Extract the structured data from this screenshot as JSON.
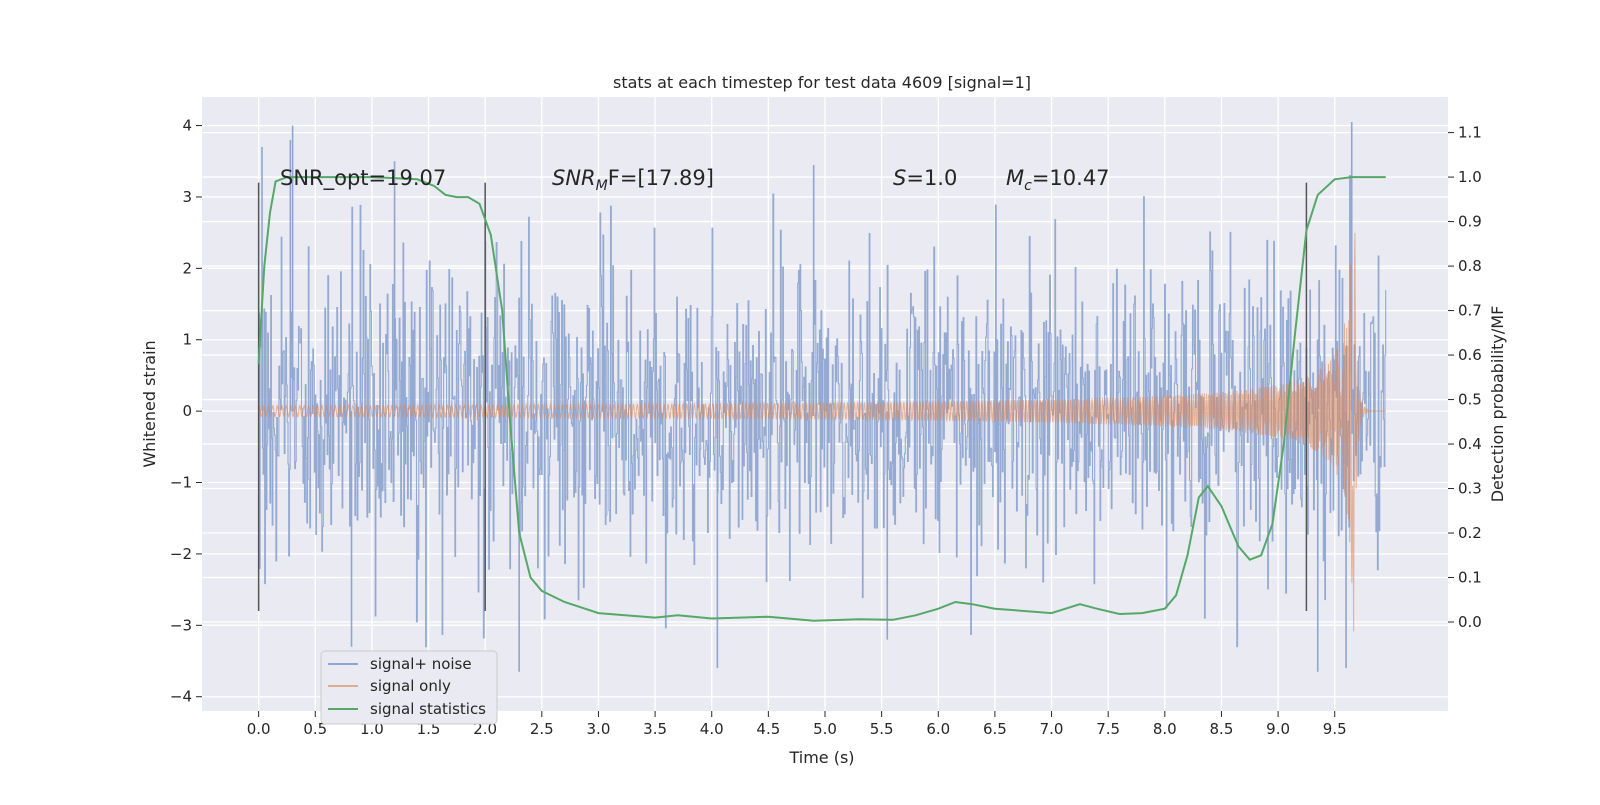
{
  "chart_data": {
    "type": "line",
    "title": "stats at each timestep for test data 4609 [signal=1]",
    "xlabel": "Time (s)",
    "ylabel_left": "Whitened strain",
    "ylabel_right": "Detection probability/MF",
    "xlim": [
      -0.5,
      10.5
    ],
    "ylim_left": [
      -4.2,
      4.4
    ],
    "ylim_right": [
      -0.2,
      1.18
    ],
    "x_ticks": [
      "0.0",
      "0.5",
      "1.0",
      "1.5",
      "2.0",
      "2.5",
      "3.0",
      "3.5",
      "4.0",
      "4.5",
      "5.0",
      "5.5",
      "6.0",
      "6.5",
      "7.0",
      "7.5",
      "8.0",
      "8.5",
      "9.0",
      "9.5"
    ],
    "x_tick_values": [
      0,
      0.5,
      1,
      1.5,
      2,
      2.5,
      3,
      3.5,
      4,
      4.5,
      5,
      5.5,
      6,
      6.5,
      7,
      7.5,
      8,
      8.5,
      9,
      9.5
    ],
    "y_left_ticks": [
      "4",
      "3",
      "2",
      "1",
      "0",
      "−1",
      "−2",
      "−3",
      "−4"
    ],
    "y_left_tick_values": [
      4,
      3,
      2,
      1,
      0,
      -1,
      -2,
      -3,
      -4
    ],
    "y_right_ticks": [
      "1.1",
      "1.0",
      "0.9",
      "0.8",
      "0.7",
      "0.6",
      "0.5",
      "0.4",
      "0.3",
      "0.2",
      "0.1",
      "0.0"
    ],
    "y_right_tick_values": [
      1.1,
      1.0,
      0.9,
      0.8,
      0.7,
      0.6,
      0.5,
      0.4,
      0.3,
      0.2,
      0.1,
      0.0
    ],
    "grid": true,
    "legend_position": "lower-left",
    "annotations": {
      "snr_opt": "SNR_opt=19.07",
      "snr_mf_main": "SNR",
      "snr_mf_sub": "M",
      "snr_mf_rest": "F=[17.89]",
      "s_main": "S",
      "s_rest": "=1.0",
      "mc_main": "M",
      "mc_sub": "c",
      "mc_rest": "=10.47"
    },
    "vertical_markers": [
      0,
      2.0,
      9.25
    ],
    "series": [
      {
        "name": "signal+ noise",
        "color": "#8fa6d1",
        "description_axis": "left",
        "x_range": [
          0,
          9.95
        ],
        "peak_points": [
          [
            0.03,
            3.7
          ],
          [
            0.3,
            4.0
          ],
          [
            9.65,
            4.05
          ],
          [
            4.05,
            -3.6
          ],
          [
            2.3,
            -3.65
          ],
          [
            9.6,
            -3.6
          ],
          [
            9.35,
            -3.65
          ],
          [
            0.82,
            -3.3
          ],
          [
            1.2,
            3.5
          ],
          [
            4.9,
            3.45
          ],
          [
            5.55,
            -3.2
          ],
          [
            0.28,
            3.8
          ]
        ]
      },
      {
        "name": "signal only",
        "color": "#dd8452",
        "description_axis": "left",
        "chirp_merger_time": 9.68,
        "peak_amplitude": 3.3
      },
      {
        "name": "signal statistics",
        "color": "#55a868",
        "description_axis": "right",
        "points": [
          [
            0,
            0.58
          ],
          [
            0.05,
            0.8
          ],
          [
            0.1,
            0.92
          ],
          [
            0.15,
            0.99
          ],
          [
            0.25,
            1.0
          ],
          [
            0.5,
            1.0
          ],
          [
            1.0,
            1.0
          ],
          [
            1.4,
            0.995
          ],
          [
            1.55,
            0.98
          ],
          [
            1.65,
            0.96
          ],
          [
            1.75,
            0.955
          ],
          [
            1.85,
            0.955
          ],
          [
            1.95,
            0.94
          ],
          [
            2.05,
            0.87
          ],
          [
            2.15,
            0.7
          ],
          [
            2.22,
            0.45
          ],
          [
            2.3,
            0.2
          ],
          [
            2.4,
            0.1
          ],
          [
            2.5,
            0.07
          ],
          [
            2.7,
            0.045
          ],
          [
            3.0,
            0.02
          ],
          [
            3.5,
            0.01
          ],
          [
            3.7,
            0.015
          ],
          [
            4.0,
            0.008
          ],
          [
            4.5,
            0.012
          ],
          [
            4.9,
            0.003
          ],
          [
            5.3,
            0.006
          ],
          [
            5.6,
            0.005
          ],
          [
            5.8,
            0.015
          ],
          [
            6.0,
            0.03
          ],
          [
            6.15,
            0.045
          ],
          [
            6.3,
            0.04
          ],
          [
            6.5,
            0.03
          ],
          [
            7.0,
            0.02
          ],
          [
            7.25,
            0.04
          ],
          [
            7.4,
            0.03
          ],
          [
            7.6,
            0.018
          ],
          [
            7.8,
            0.02
          ],
          [
            8.0,
            0.03
          ],
          [
            8.1,
            0.06
          ],
          [
            8.2,
            0.15
          ],
          [
            8.3,
            0.28
          ],
          [
            8.38,
            0.305
          ],
          [
            8.5,
            0.26
          ],
          [
            8.65,
            0.17
          ],
          [
            8.75,
            0.14
          ],
          [
            8.85,
            0.15
          ],
          [
            8.95,
            0.22
          ],
          [
            9.05,
            0.4
          ],
          [
            9.15,
            0.65
          ],
          [
            9.25,
            0.88
          ],
          [
            9.35,
            0.96
          ],
          [
            9.5,
            0.995
          ],
          [
            9.65,
            1.0
          ],
          [
            9.95,
            1.0
          ]
        ]
      }
    ]
  }
}
